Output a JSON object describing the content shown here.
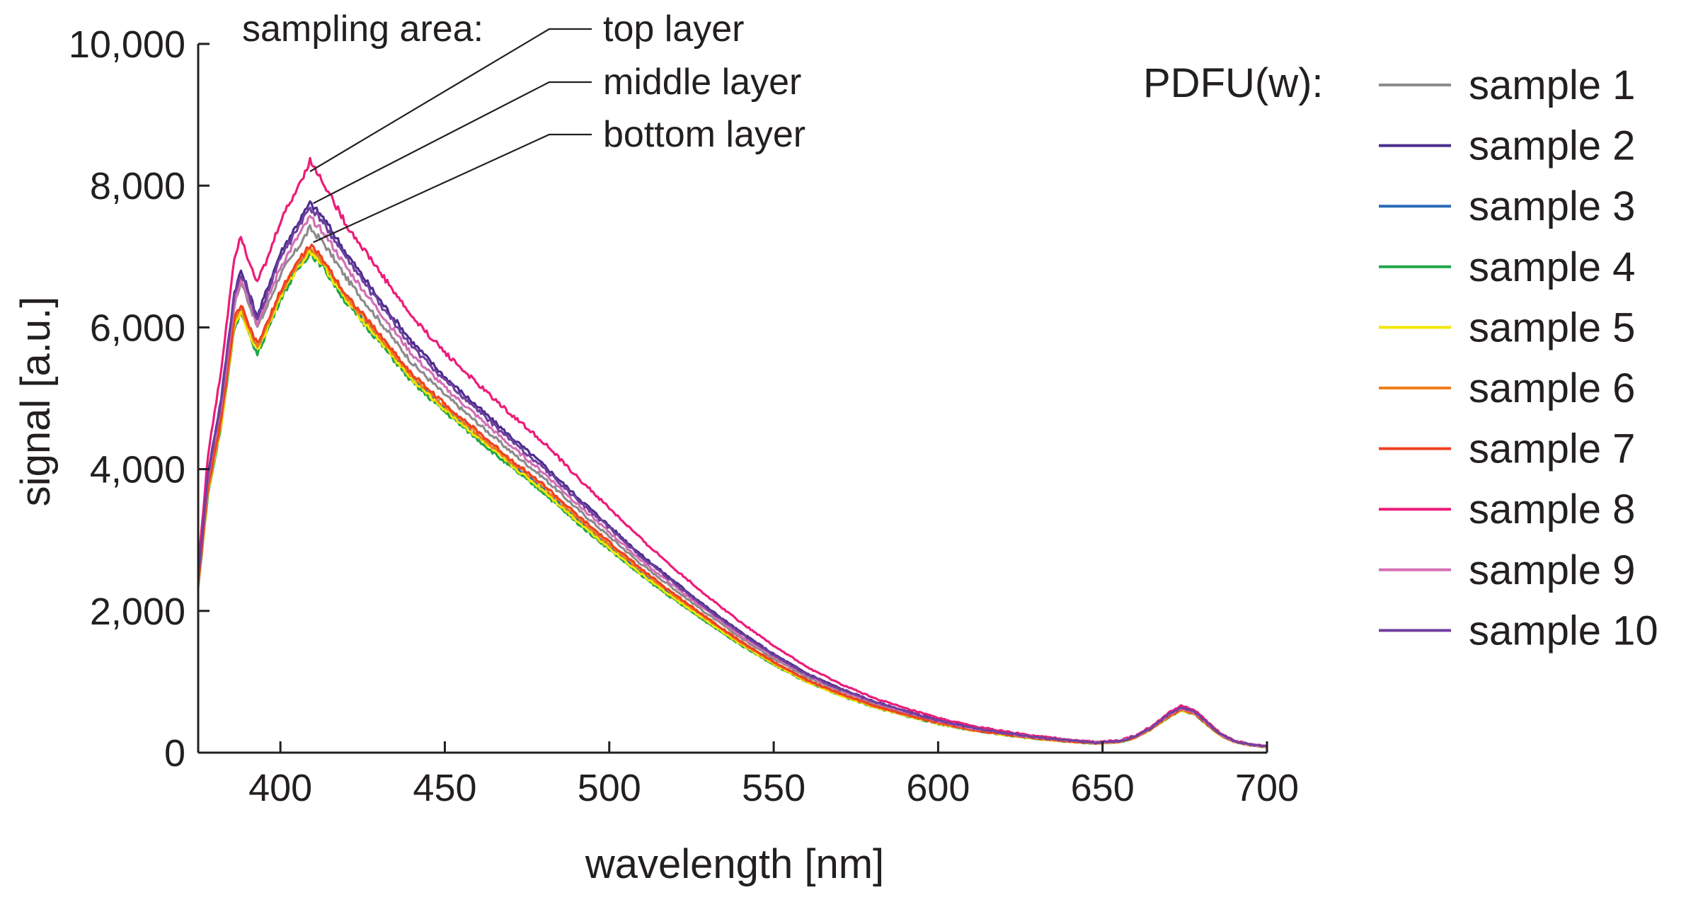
{
  "chart_data": {
    "type": "line",
    "title": "",
    "xlabel": "wavelength [nm]",
    "ylabel": "signal [a.u.]",
    "xlim": [
      375,
      700
    ],
    "ylim": [
      0,
      10000
    ],
    "xticks": [
      400,
      450,
      500,
      550,
      600,
      650,
      700
    ],
    "xtick_labels": [
      "400",
      "450",
      "500",
      "550",
      "600",
      "650",
      "700"
    ],
    "yticks": [
      0,
      2000,
      4000,
      6000,
      8000,
      10000
    ],
    "ytick_labels": [
      "0",
      "2,000",
      "4,000",
      "6,000",
      "8,000",
      "10,000"
    ],
    "grid": false,
    "legend": {
      "title": "PDFU(w):",
      "placement": "right"
    },
    "annotation": {
      "heading": "sampling area:",
      "labels": [
        "top layer",
        "middle layer",
        "bottom layer"
      ],
      "targets": [
        {
          "label": "top layer",
          "x": 409,
          "y": 8200
        },
        {
          "label": "middle layer",
          "x": 410,
          "y": 7750
        },
        {
          "label": "bottom layer",
          "x": 410,
          "y": 7200
        }
      ]
    },
    "x": [
      375,
      378,
      382,
      386,
      388,
      390,
      393,
      396,
      400,
      405,
      409,
      413,
      420,
      430,
      440,
      450,
      460,
      470,
      480,
      490,
      500,
      510,
      520,
      530,
      540,
      550,
      560,
      570,
      580,
      590,
      600,
      610,
      620,
      630,
      640,
      648,
      655,
      660,
      665,
      670,
      674,
      678,
      682,
      686,
      690,
      695,
      700
    ],
    "series": [
      {
        "name": "sample 1",
        "color": "#8c8c8c",
        "values": [
          2450,
          3850,
          4850,
          6300,
          6650,
          6400,
          6000,
          6300,
          6750,
          7100,
          7400,
          7200,
          6700,
          6100,
          5500,
          5050,
          4650,
          4250,
          3880,
          3450,
          3050,
          2650,
          2300,
          1950,
          1620,
          1330,
          1070,
          870,
          700,
          560,
          440,
          340,
          270,
          210,
          165,
          140,
          160,
          220,
          350,
          520,
          620,
          560,
          400,
          250,
          160,
          110,
          85
        ]
      },
      {
        "name": "sample 2",
        "color": "#4b2e8c",
        "values": [
          2500,
          3950,
          5000,
          6500,
          6800,
          6550,
          6150,
          6550,
          7050,
          7450,
          7750,
          7550,
          7050,
          6400,
          5800,
          5300,
          4880,
          4460,
          4060,
          3620,
          3200,
          2780,
          2410,
          2040,
          1700,
          1390,
          1120,
          910,
          730,
          590,
          460,
          360,
          285,
          220,
          175,
          145,
          165,
          230,
          360,
          540,
          640,
          580,
          420,
          260,
          165,
          115,
          88
        ]
      },
      {
        "name": "sample 3",
        "color": "#2b6cb8",
        "values": [
          2350,
          3700,
          4650,
          6050,
          6250,
          6000,
          5700,
          6000,
          6450,
          6850,
          7100,
          6900,
          6400,
          5850,
          5280,
          4860,
          4470,
          4080,
          3720,
          3300,
          2910,
          2530,
          2190,
          1860,
          1540,
          1260,
          1010,
          820,
          660,
          530,
          415,
          320,
          255,
          200,
          158,
          132,
          152,
          212,
          340,
          505,
          600,
          545,
          390,
          243,
          155,
          108,
          82
        ]
      },
      {
        "name": "sample 4",
        "color": "#1fa64a",
        "values": [
          2320,
          3650,
          4600,
          6000,
          6200,
          5950,
          5620,
          5950,
          6400,
          6800,
          7050,
          6850,
          6350,
          5800,
          5230,
          4810,
          4420,
          4030,
          3670,
          3250,
          2870,
          2490,
          2150,
          1830,
          1520,
          1240,
          995,
          810,
          650,
          522,
          408,
          316,
          251,
          197,
          156,
          130,
          150,
          210,
          336,
          500,
          595,
          540,
          386,
          240,
          153,
          106,
          81
        ]
      },
      {
        "name": "sample 5",
        "color": "#f2e600",
        "values": [
          2340,
          3680,
          4630,
          6030,
          6230,
          5980,
          5680,
          5980,
          6430,
          6830,
          7080,
          6880,
          6380,
          5830,
          5260,
          4840,
          4450,
          4060,
          3700,
          3280,
          2890,
          2510,
          2170,
          1845,
          1530,
          1250,
          1002,
          815,
          655,
          526,
          411,
          318,
          253,
          198,
          157,
          131,
          151,
          211,
          338,
          502,
          598,
          542,
          388,
          241,
          154,
          107,
          81
        ]
      },
      {
        "name": "sample 6",
        "color": "#f07f1e",
        "values": [
          2360,
          3720,
          4680,
          6080,
          6280,
          6030,
          5730,
          6030,
          6480,
          6880,
          7130,
          6930,
          6430,
          5880,
          5310,
          4890,
          4500,
          4110,
          3750,
          3330,
          2940,
          2560,
          2210,
          1880,
          1555,
          1270,
          1020,
          828,
          665,
          534,
          418,
          323,
          257,
          201,
          160,
          133,
          153,
          214,
          342,
          508,
          605,
          548,
          392,
          244,
          156,
          108,
          82
        ]
      },
      {
        "name": "sample 7",
        "color": "#ef4123",
        "values": [
          2380,
          3750,
          4700,
          6120,
          6320,
          6060,
          5760,
          6060,
          6510,
          6910,
          7160,
          6960,
          6460,
          5910,
          5340,
          4920,
          4530,
          4140,
          3780,
          3360,
          2970,
          2580,
          2230,
          1895,
          1570,
          1282,
          1030,
          836,
          672,
          540,
          422,
          326,
          260,
          203,
          161,
          134,
          155,
          216,
          346,
          512,
          610,
          552,
          395,
          246,
          157,
          109,
          83
        ]
      },
      {
        "name": "sample 8",
        "color": "#ec1c79",
        "values": [
          2600,
          4200,
          5400,
          7000,
          7300,
          7000,
          6650,
          6950,
          7500,
          7950,
          8350,
          8050,
          7450,
          6800,
          6150,
          5650,
          5200,
          4780,
          4380,
          3900,
          3450,
          3000,
          2590,
          2200,
          1840,
          1510,
          1210,
          975,
          780,
          625,
          490,
          380,
          300,
          232,
          184,
          150,
          172,
          240,
          375,
          560,
          665,
          600,
          432,
          268,
          170,
          118,
          90
        ]
      },
      {
        "name": "sample 9",
        "color": "#d36fb5",
        "values": [
          2470,
          3880,
          4900,
          6350,
          6700,
          6450,
          6050,
          6380,
          6850,
          7250,
          7550,
          7350,
          6850,
          6230,
          5620,
          5150,
          4740,
          4330,
          3950,
          3520,
          3110,
          2700,
          2340,
          1990,
          1650,
          1355,
          1090,
          885,
          712,
          572,
          448,
          347,
          275,
          214,
          169,
          142,
          162,
          225,
          354,
          530,
          630,
          568,
          410,
          254,
          162,
          112,
          86
        ]
      },
      {
        "name": "sample 10",
        "color": "#7040a0",
        "values": [
          2490,
          3920,
          4960,
          6450,
          6750,
          6500,
          6100,
          6480,
          6980,
          7380,
          7680,
          7480,
          6980,
          6340,
          5730,
          5250,
          4830,
          4410,
          4020,
          3580,
          3170,
          2750,
          2380,
          2020,
          1680,
          1375,
          1105,
          898,
          722,
          582,
          455,
          354,
          281,
          218,
          172,
          144,
          164,
          228,
          358,
          536,
          636,
          575,
          416,
          257,
          164,
          113,
          87
        ]
      }
    ]
  }
}
